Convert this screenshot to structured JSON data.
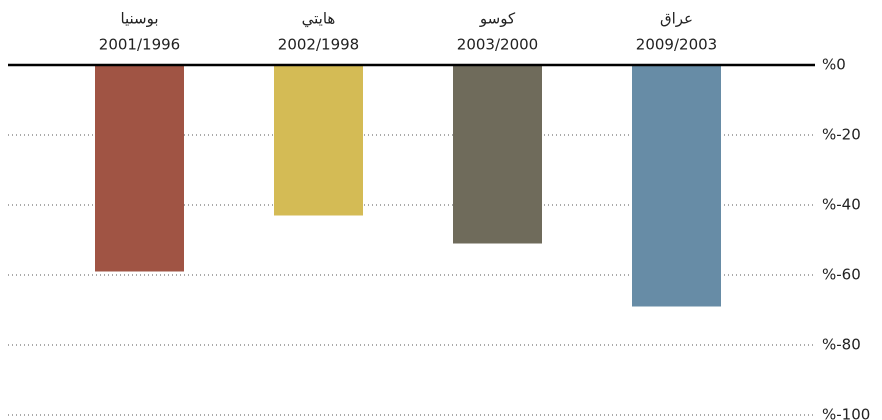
{
  "chart_data": {
    "type": "bar",
    "categories": [
      "بوسنيا",
      "هايتي",
      "كوسو",
      "عراق"
    ],
    "subcategories": [
      "2001/1996",
      "2002/1998",
      "2003/2000",
      "2009/2003"
    ],
    "values": [
      -59,
      -43,
      -51,
      -69
    ],
    "colors": [
      "#a05444",
      "#d4bb55",
      "#6f6b5b",
      "#678ca6"
    ],
    "ylim": [
      -100,
      0
    ],
    "yticks": [
      {
        "value": 0,
        "label": "%0"
      },
      {
        "value": -20,
        "label": "%-20"
      },
      {
        "value": -40,
        "label": "%-40"
      },
      {
        "value": -60,
        "label": "%-60"
      },
      {
        "value": -80,
        "label": "%-80"
      },
      {
        "value": -100,
        "label": "%-100"
      }
    ],
    "grid": true
  }
}
